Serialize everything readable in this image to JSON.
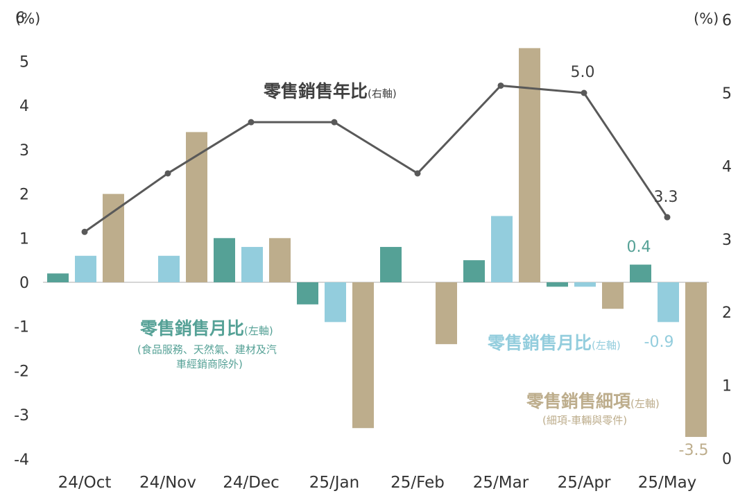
{
  "chart_data": {
    "type": "bar+line",
    "categories": [
      "24/Oct",
      "24/Nov",
      "24/Dec",
      "25/Jan",
      "25/Feb",
      "25/Mar",
      "25/Apr",
      "25/May"
    ],
    "series": [
      {
        "key": "ctrl",
        "axis": "left",
        "type": "bar",
        "color": "#55a196",
        "values": [
          0.2,
          0.0,
          1.0,
          -0.5,
          0.8,
          0.5,
          -0.1,
          0.4
        ]
      },
      {
        "key": "mom",
        "axis": "left",
        "type": "bar",
        "color": "#93cddd",
        "values": [
          0.6,
          0.6,
          0.8,
          -0.9,
          0.0,
          1.5,
          -0.1,
          -0.9
        ]
      },
      {
        "key": "detail",
        "axis": "left",
        "type": "bar",
        "color": "#bdad8c",
        "values": [
          2.0,
          3.4,
          1.0,
          -3.3,
          -1.4,
          5.3,
          -0.6,
          -3.5
        ]
      },
      {
        "key": "yoy",
        "axis": "right",
        "type": "line",
        "color": "#595959",
        "values": [
          3.1,
          3.9,
          4.6,
          4.6,
          3.9,
          5.1,
          5.0,
          3.3
        ]
      }
    ],
    "left_axis": {
      "unit": "(%)",
      "ylim": [
        -4,
        6
      ],
      "ticks": [
        "-4",
        "-3",
        "-2",
        "-1",
        "0",
        "1",
        "2",
        "3",
        "4",
        "5",
        "6"
      ]
    },
    "right_axis": {
      "unit": "(%)",
      "ylim": [
        0,
        6
      ],
      "ticks": [
        "0",
        "1",
        "2",
        "3",
        "4",
        "5",
        "6"
      ]
    },
    "data_labels": [
      {
        "text": "5.0",
        "color": "#404040"
      },
      {
        "text": "3.3",
        "color": "#404040"
      },
      {
        "text": "0.4",
        "color": "#55a196"
      },
      {
        "text": "-0.9",
        "color": "#93cddd"
      },
      {
        "text": "-3.5",
        "color": "#bdad8c"
      }
    ],
    "annotations": {
      "yoy": {
        "main": "零售銷售年比",
        "note": "(右軸)",
        "color": "#404040"
      },
      "ctrl": {
        "main": "零售銷售月比",
        "note": "(左軸)",
        "sub1": "(食品服務、天然氣、建材及汽",
        "sub2": "車經銷商除外)",
        "color": "#55a196"
      },
      "mom": {
        "main": "零售銷售月比",
        "note": "(左軸)",
        "color": "#93cddd"
      },
      "detail": {
        "main": "零售銷售細項",
        "note": "(左軸)",
        "sub1": "(細項-車輛與零件)",
        "color": "#bdad8c"
      }
    },
    "grid": false
  }
}
